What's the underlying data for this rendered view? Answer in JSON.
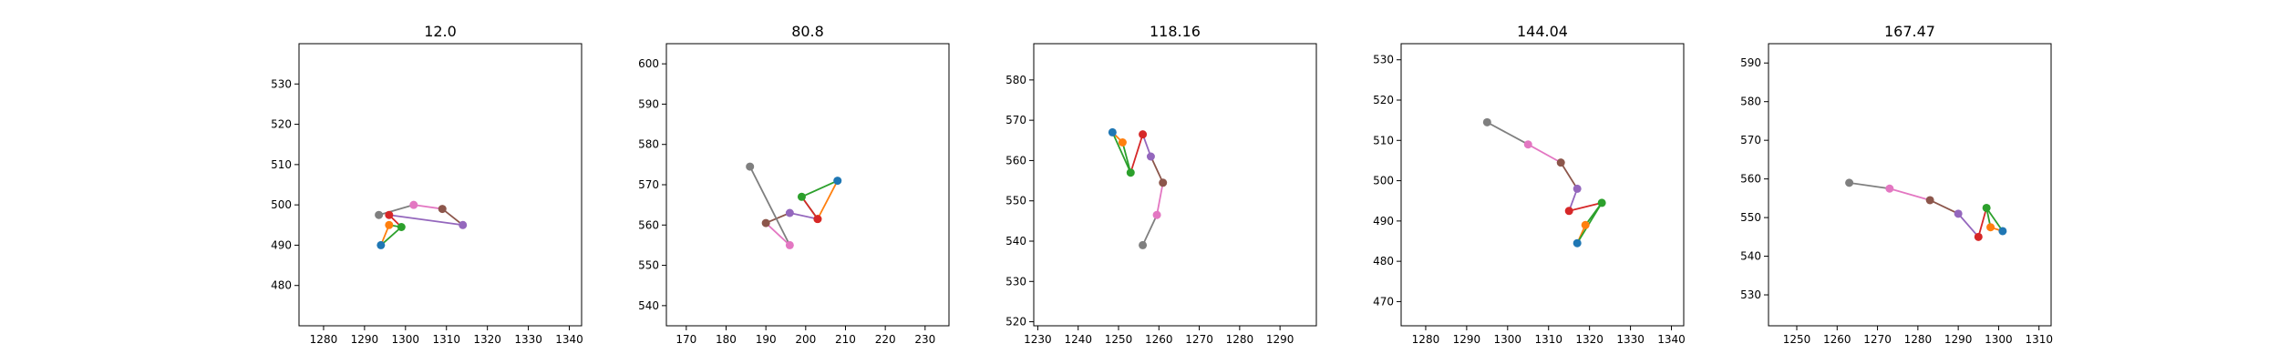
{
  "chart_data": [
    {
      "type": "scatter",
      "title": "12.0",
      "xlim": [
        1274,
        1343
      ],
      "ylim": [
        470,
        540
      ],
      "xticks": [
        1280,
        1290,
        1300,
        1310,
        1320,
        1330,
        1340
      ],
      "yticks": [
        480,
        490,
        500,
        510,
        520,
        530
      ],
      "points": [
        {
          "x": 1294,
          "y": 490,
          "color": "#1f77b4"
        },
        {
          "x": 1296,
          "y": 495,
          "color": "#ff7f0e"
        },
        {
          "x": 1299,
          "y": 494.5,
          "color": "#2ca02c"
        },
        {
          "x": 1296,
          "y": 497.5,
          "color": "#d62728"
        },
        {
          "x": 1314,
          "y": 495,
          "color": "#9467bd"
        },
        {
          "x": 1309,
          "y": 499,
          "color": "#8c564b"
        },
        {
          "x": 1302,
          "y": 500,
          "color": "#e377c2"
        },
        {
          "x": 1293.5,
          "y": 497.5,
          "color": "#7f7f7f"
        }
      ]
    },
    {
      "type": "scatter",
      "title": "80.8",
      "xlim": [
        165,
        236
      ],
      "ylim": [
        535,
        605
      ],
      "xticks": [
        170,
        180,
        190,
        200,
        210,
        220,
        230
      ],
      "yticks": [
        540,
        550,
        560,
        570,
        580,
        590,
        600
      ],
      "points": [
        {
          "x": 208,
          "y": 571,
          "color": "#1f77b4"
        },
        {
          "x": 203,
          "y": 561.5,
          "color": "#ff7f0e"
        },
        {
          "x": 199,
          "y": 567,
          "color": "#2ca02c"
        },
        {
          "x": 203,
          "y": 561.5,
          "color": "#d62728"
        },
        {
          "x": 196,
          "y": 563,
          "color": "#9467bd"
        },
        {
          "x": 190,
          "y": 560.5,
          "color": "#8c564b"
        },
        {
          "x": 196,
          "y": 555,
          "color": "#e377c2"
        },
        {
          "x": 186,
          "y": 574.5,
          "color": "#7f7f7f"
        }
      ]
    },
    {
      "type": "scatter",
      "title": "118.16",
      "xlim": [
        1229,
        1299
      ],
      "ylim": [
        519,
        589
      ],
      "xticks": [
        1230,
        1240,
        1250,
        1260,
        1270,
        1280,
        1290
      ],
      "yticks": [
        520,
        530,
        540,
        550,
        560,
        570,
        580
      ],
      "points": [
        {
          "x": 1248.5,
          "y": 567,
          "color": "#1f77b4"
        },
        {
          "x": 1251,
          "y": 564.5,
          "color": "#ff7f0e"
        },
        {
          "x": 1253,
          "y": 557,
          "color": "#2ca02c"
        },
        {
          "x": 1256,
          "y": 566.5,
          "color": "#d62728"
        },
        {
          "x": 1258,
          "y": 561,
          "color": "#9467bd"
        },
        {
          "x": 1261,
          "y": 554.5,
          "color": "#8c564b"
        },
        {
          "x": 1259.5,
          "y": 546.5,
          "color": "#e377c2"
        },
        {
          "x": 1256,
          "y": 539,
          "color": "#7f7f7f"
        }
      ]
    },
    {
      "type": "scatter",
      "title": "144.04",
      "xlim": [
        1274,
        1343
      ],
      "ylim": [
        464,
        534
      ],
      "xticks": [
        1280,
        1290,
        1300,
        1310,
        1320,
        1330,
        1340
      ],
      "yticks": [
        470,
        480,
        490,
        500,
        510,
        520,
        530
      ],
      "points": [
        {
          "x": 1317,
          "y": 484.5,
          "color": "#1f77b4"
        },
        {
          "x": 1319,
          "y": 489,
          "color": "#ff7f0e"
        },
        {
          "x": 1323,
          "y": 494.5,
          "color": "#2ca02c"
        },
        {
          "x": 1315,
          "y": 492.5,
          "color": "#d62728"
        },
        {
          "x": 1317,
          "y": 498,
          "color": "#9467bd"
        },
        {
          "x": 1313,
          "y": 504.5,
          "color": "#8c564b"
        },
        {
          "x": 1305,
          "y": 509,
          "color": "#e377c2"
        },
        {
          "x": 1295,
          "y": 514.5,
          "color": "#7f7f7f"
        }
      ]
    },
    {
      "type": "scatter",
      "title": "167.47",
      "xlim": [
        1243,
        1313
      ],
      "ylim": [
        522,
        595
      ],
      "xticks": [
        1250,
        1260,
        1270,
        1280,
        1290,
        1300,
        1310
      ],
      "yticks": [
        530,
        540,
        550,
        560,
        570,
        580,
        590
      ],
      "points": [
        {
          "x": 1301,
          "y": 546.5,
          "color": "#1f77b4"
        },
        {
          "x": 1298,
          "y": 547.5,
          "color": "#ff7f0e"
        },
        {
          "x": 1297,
          "y": 552.5,
          "color": "#2ca02c"
        },
        {
          "x": 1295,
          "y": 545,
          "color": "#d62728"
        },
        {
          "x": 1290,
          "y": 551,
          "color": "#9467bd"
        },
        {
          "x": 1283,
          "y": 554.5,
          "color": "#8c564b"
        },
        {
          "x": 1273,
          "y": 557.5,
          "color": "#e377c2"
        },
        {
          "x": 1263,
          "y": 559,
          "color": "#7f7f7f"
        }
      ]
    }
  ]
}
